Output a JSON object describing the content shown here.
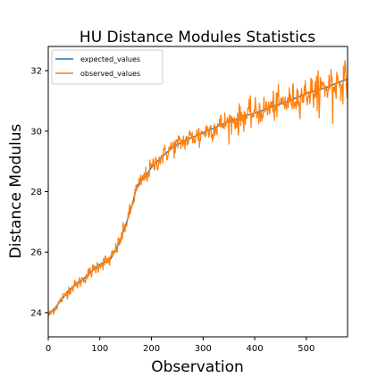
{
  "chart_data": {
    "type": "line",
    "title": "HU Distance Modules Statistics",
    "xlabel": "Observation",
    "ylabel": "Distance Modulus",
    "xlim": [
      0,
      580
    ],
    "ylim": [
      23.2,
      32.8
    ],
    "xticks": [
      0,
      100,
      200,
      300,
      400,
      500
    ],
    "yticks": [
      24,
      26,
      28,
      30,
      32
    ],
    "xtick_labels": [
      "0",
      "100",
      "200",
      "300",
      "400",
      "500"
    ],
    "ytick_labels": [
      "24",
      "26",
      "28",
      "30",
      "32"
    ],
    "legend": "top-left",
    "grid": false,
    "series": [
      {
        "name": "expected_values",
        "color": "#1f77b4",
        "x": [
          0,
          20,
          40,
          60,
          80,
          100,
          120,
          130,
          140,
          150,
          160,
          170,
          175,
          180,
          190,
          200,
          220,
          240,
          260,
          280,
          300,
          320,
          340,
          360,
          380,
          400,
          420,
          440,
          460,
          480,
          500,
          520,
          540,
          560,
          580
        ],
        "y": [
          23.9,
          24.3,
          24.75,
          25.0,
          25.3,
          25.6,
          25.75,
          26.05,
          26.4,
          26.9,
          27.4,
          28.05,
          28.2,
          28.35,
          28.55,
          28.8,
          29.15,
          29.45,
          29.65,
          29.8,
          29.95,
          30.1,
          30.25,
          30.35,
          30.5,
          30.6,
          30.72,
          30.85,
          30.95,
          31.1,
          31.25,
          31.35,
          31.45,
          31.6,
          31.72
        ]
      },
      {
        "name": "observed_values",
        "color": "#ff7f0e",
        "noise": "observational scatter around expected values"
      }
    ]
  }
}
